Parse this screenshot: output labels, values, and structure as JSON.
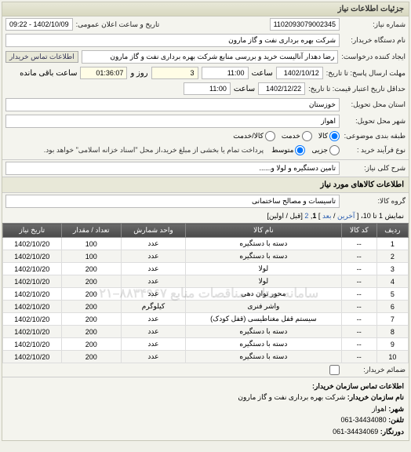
{
  "panel": {
    "title": "جزئیات اطلاعات نیاز"
  },
  "top": {
    "req_no_label": "شماره نیاز:",
    "req_no_value": "1102093079002345",
    "announce_label": "تاریخ و ساعت اعلان عمومی:",
    "announce_value": "1402/10/09 - 09:22",
    "buyer_org_label": "نام دستگاه خریدار:",
    "buyer_org_value": "شرکت بهره برداری نفت و گاز مارون",
    "requester_label": "ایجاد کننده درخواست:",
    "requester_value": "رضا دهدار آنالیست خرید و بررسی منابع شرکت بهره برداری نفت و گاز مارون",
    "contact_btn": "اطلاعات تماس خریدار",
    "deadline_label": "مهلت ارسال پاسخ: تا تاریخ:",
    "deadline_date": "1402/10/12",
    "time_label": "ساعت",
    "deadline_time": "11:00",
    "remain_label_days": "روز و",
    "remain_days": "3",
    "remain_time": "01:36:07",
    "remain_suffix": "ساعت باقی مانده",
    "valid_label": "حداقل تاریخ اعتبار قیمت: تا تاریخ:",
    "valid_date": "1402/12/22",
    "valid_time": "11:00",
    "province_label": "استان محل تحویل:",
    "province_value": "خوزستان",
    "city_label": "شهر محل تحویل:",
    "city_value": "اهواز",
    "class_label": "طبقه بندی موضوعی:",
    "class_opts": {
      "goods": "کالا",
      "service": "خدمت",
      "both": "کالا/خدمت"
    },
    "proc_label": "نوع فرآیند خرید :",
    "proc_opts": {
      "small": "جزیی",
      "medium": "متوسط"
    },
    "proc_note": "پرداخت تمام یا بخشی از مبلغ خرید،از محل \"اسناد خزانه اسلامی\" خواهد بود.",
    "subject_label": "شرح کلی نیاز:",
    "subject_value": "تامین دستگیره و لولا و......",
    "goods_section": "اطلاعات کالاهای مورد نیاز",
    "goods_group_label": "گروه کالا:",
    "goods_group_value": "تاسیسات و مصالح ساختمانی"
  },
  "pager": {
    "prefix": "نمایش 1 تا 10، [ ",
    "last": "آخرین",
    "sep1": " / ",
    "next": "بعد",
    "sep2": " ] ",
    "page1": "1",
    "comma": ", ",
    "page2": "2",
    "suffix": " [قبل / اولین]",
    "attach_label": "ضمائم خریدار:"
  },
  "table": {
    "columns": [
      "ردیف",
      "کد کالا",
      "نام کالا",
      "واحد شمارش",
      "تعداد / مقدار",
      "تاریخ نیاز"
    ],
    "rows": [
      [
        "1",
        "--",
        "دسته با دستگیره",
        "عدد",
        "100",
        "1402/10/20"
      ],
      [
        "2",
        "--",
        "دسته با دستگیره",
        "عدد",
        "100",
        "1402/10/20"
      ],
      [
        "3",
        "--",
        "لولا",
        "عدد",
        "200",
        "1402/10/20"
      ],
      [
        "4",
        "--",
        "لولا",
        "عدد",
        "200",
        "1402/10/20"
      ],
      [
        "5",
        "--",
        "محور توان دهی",
        "عدد",
        "200",
        "1402/10/20"
      ],
      [
        "6",
        "--",
        "واشر فنری",
        "کیلوگرم",
        "200",
        "1402/10/20"
      ],
      [
        "7",
        "--",
        "سیستم قفل مغناطیسی (قفل کودک)",
        "عدد",
        "200",
        "1402/10/20"
      ],
      [
        "8",
        "--",
        "دسته با دستگیره",
        "عدد",
        "200",
        "1402/10/20"
      ],
      [
        "9",
        "--",
        "دسته با دستگیره",
        "عدد",
        "200",
        "1402/10/20"
      ],
      [
        "10",
        "--",
        "دسته با دستگیره",
        "عدد",
        "200",
        "1402/10/20"
      ]
    ]
  },
  "watermark": "سامانه ستاد - مناقصات منابع ۸۸۳۴۹۶۷–۰۲۱",
  "footer": {
    "title": "اطلاعات تماس سازمان خریدار:",
    "org_label": "نام سازمان خریدار:",
    "org_value": "شرکت بهره برداری نفت و گاز مارون",
    "city_label": "شهر:",
    "city_value": "اهواز",
    "tel_label": "تلفن:",
    "tel_value": "061-34434080",
    "fax_label": "دورنگار:",
    "fax_value": "061-34434069"
  }
}
